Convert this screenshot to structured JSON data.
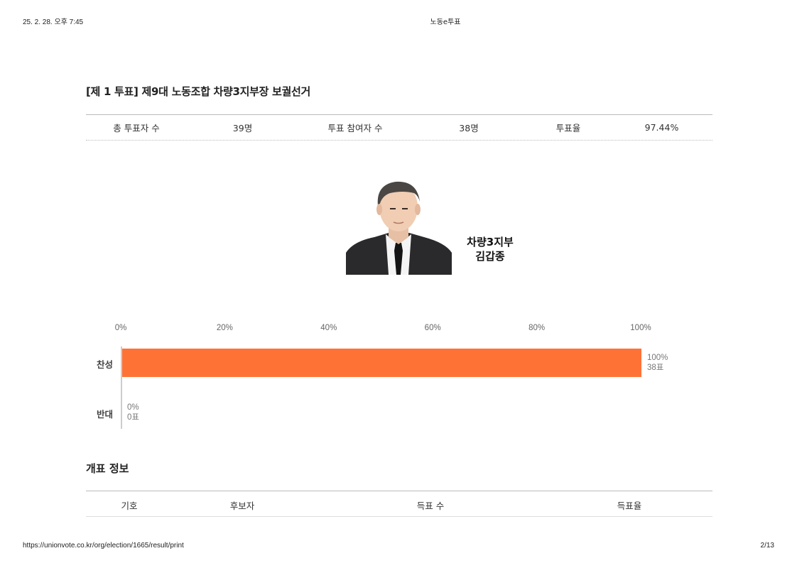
{
  "print_header": {
    "datetime": "25. 2. 28. 오후 7:45",
    "site_title": "노동e투표"
  },
  "print_footer": {
    "url": "https://unionvote.co.kr/org/election/1665/result/print",
    "page": "2/13"
  },
  "election": {
    "title": "[제 1 투표] 제9대 노동조합 차량3지부장 보궐선거"
  },
  "stats": {
    "total_voters_label": "총 투표자 수",
    "total_voters_value": "39명",
    "participants_label": "투표 참여자 수",
    "participants_value": "38명",
    "turnout_label": "투표율",
    "turnout_value": "97.44%"
  },
  "candidate": {
    "branch": "차량3지부",
    "name": "김갑종"
  },
  "chart_data": {
    "type": "bar",
    "orientation": "horizontal",
    "categories": [
      "찬성",
      "반대"
    ],
    "values": [
      100,
      0
    ],
    "votes": [
      38,
      0
    ],
    "value_labels": [
      "100%",
      "0%"
    ],
    "vote_labels": [
      "38표",
      "0표"
    ],
    "xlim": [
      0,
      100
    ],
    "x_ticks": [
      "0%",
      "20%",
      "40%",
      "60%",
      "80%",
      "100%"
    ],
    "bar_color": "#ff7236"
  },
  "count_info": {
    "title": "개표 정보",
    "columns": [
      "기호",
      "후보자",
      "득표 수",
      "득표율"
    ]
  }
}
